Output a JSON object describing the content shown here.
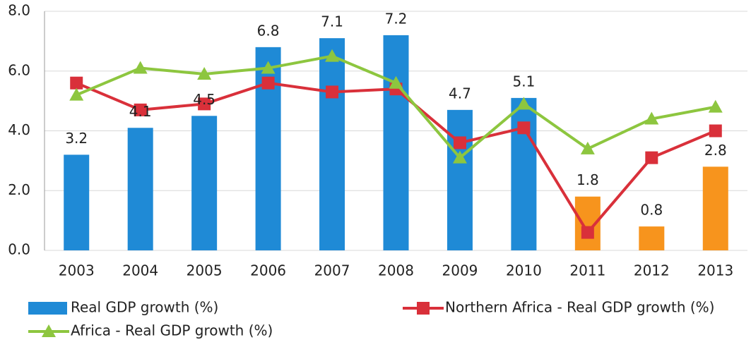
{
  "chart_data": {
    "type": "combo",
    "categories": [
      "2003",
      "2004",
      "2005",
      "2006",
      "2007",
      "2008",
      "2009",
      "2010",
      "2011",
      "2012",
      "2013"
    ],
    "series": [
      {
        "name": "Real GDP growth (%)",
        "type": "bar",
        "color": "#1f8ad6",
        "colors": [
          "#1f8ad6",
          "#1f8ad6",
          "#1f8ad6",
          "#1f8ad6",
          "#1f8ad6",
          "#1f8ad6",
          "#1f8ad6",
          "#1f8ad6",
          "#f7941d",
          "#f7941d",
          "#f7941d"
        ],
        "values": [
          3.2,
          4.1,
          4.5,
          6.8,
          7.1,
          7.2,
          4.7,
          5.1,
          1.8,
          0.8,
          2.8
        ]
      },
      {
        "name": "Northern Africa - Real GDP growth (%)",
        "type": "line",
        "marker": "square",
        "color": "#d9303a",
        "values": [
          5.6,
          4.7,
          4.9,
          5.6,
          5.3,
          5.4,
          3.6,
          4.1,
          0.6,
          3.1,
          4.0
        ]
      },
      {
        "name": "Africa - Real GDP growth (%)",
        "type": "line",
        "marker": "triangle",
        "color": "#8dc63f",
        "values": [
          5.2,
          6.1,
          5.9,
          6.1,
          6.5,
          5.6,
          3.1,
          4.9,
          3.4,
          4.4,
          4.8
        ]
      }
    ],
    "ylim": [
      0,
      8
    ],
    "yticks": [
      {
        "value": 0,
        "label": "0.0"
      },
      {
        "value": 2,
        "label": "2.0"
      },
      {
        "value": 4,
        "label": "4.0"
      },
      {
        "value": 6,
        "label": "6.0"
      },
      {
        "value": 8,
        "label": "8.0"
      }
    ],
    "grid": true,
    "legend": "bottom"
  }
}
